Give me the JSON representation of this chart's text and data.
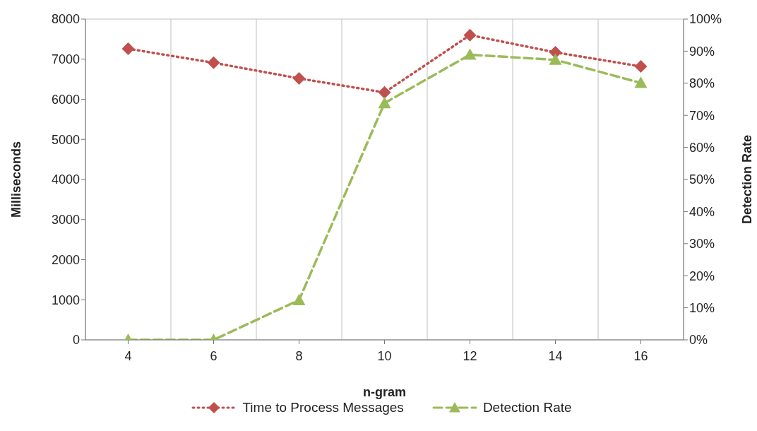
{
  "chart_data": {
    "type": "line",
    "xlabel": "n-gram",
    "ylabel": "Milliseconds",
    "y2label": "Detection Rate",
    "categories": [
      "4",
      "6",
      "8",
      "10",
      "12",
      "14",
      "16"
    ],
    "series": [
      {
        "name": "Time to Process Messages",
        "color": "#c0504d",
        "values": [
          7260,
          6910,
          6520,
          6170,
          7600,
          7170,
          6820
        ],
        "marker": "diamond",
        "line_style": "dotted"
      },
      {
        "name": "Detection Rate",
        "color": "#9bbb59",
        "values": [
          0,
          0,
          12.4,
          73.8,
          88.9,
          87.3,
          80.1
        ],
        "axis": "y2",
        "marker": "triangle",
        "line_style": "dashed"
      }
    ],
    "ylim": [
      0,
      8000
    ],
    "yticks": [
      0,
      1000,
      2000,
      3000,
      4000,
      5000,
      6000,
      7000,
      8000
    ],
    "y2lim": [
      0,
      100
    ],
    "y2ticks": [
      {
        "value": 0,
        "label": "0%"
      },
      {
        "value": 10,
        "label": "10%"
      },
      {
        "value": 20,
        "label": "20%"
      },
      {
        "value": 30,
        "label": "30%"
      },
      {
        "value": 40,
        "label": "40%"
      },
      {
        "value": 50,
        "label": "50%"
      },
      {
        "value": 60,
        "label": "60%"
      },
      {
        "value": 70,
        "label": "70%"
      },
      {
        "value": 80,
        "label": "80%"
      },
      {
        "value": 90,
        "label": "90%"
      },
      {
        "value": 100,
        "label": "100%"
      }
    ],
    "grid": true,
    "legend": "bottom"
  }
}
